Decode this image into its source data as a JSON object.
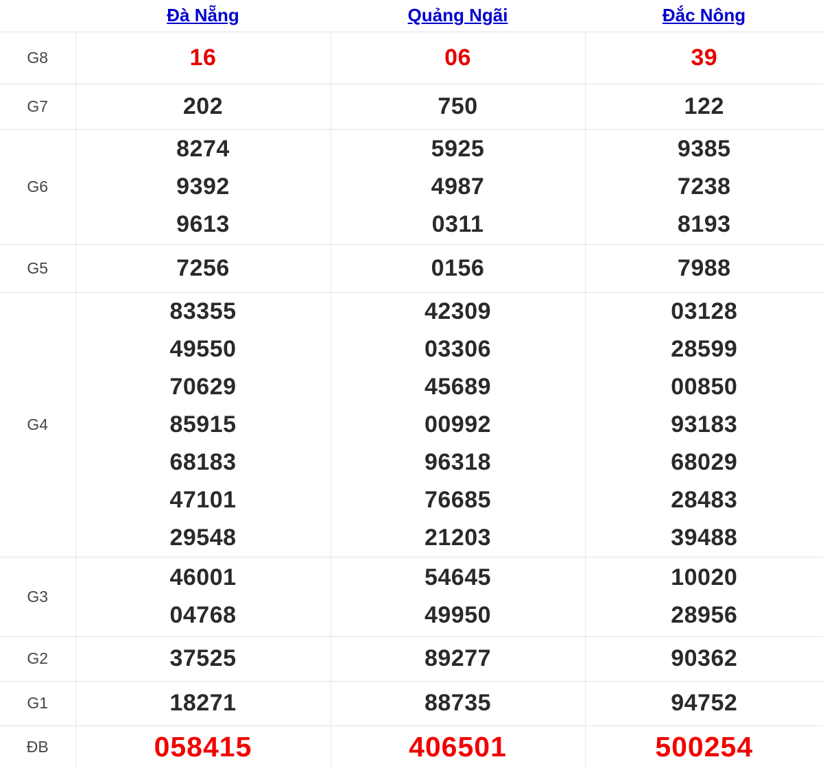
{
  "table": {
    "columns": [
      {
        "id": "da-nang",
        "label": "Đà Nẵng"
      },
      {
        "id": "quang-ngai",
        "label": "Quảng Ngãi"
      },
      {
        "id": "dac-nong",
        "label": "Đắc Nông"
      }
    ],
    "rows": [
      {
        "id": "g8",
        "label": "G8",
        "style": "red",
        "values": [
          [
            "16"
          ],
          [
            "06"
          ],
          [
            "39"
          ]
        ]
      },
      {
        "id": "g7",
        "label": "G7",
        "style": "normal",
        "values": [
          [
            "202"
          ],
          [
            "750"
          ],
          [
            "122"
          ]
        ]
      },
      {
        "id": "g6",
        "label": "G6",
        "style": "normal",
        "values": [
          [
            "8274",
            "9392",
            "9613"
          ],
          [
            "5925",
            "4987",
            "0311"
          ],
          [
            "9385",
            "7238",
            "8193"
          ]
        ]
      },
      {
        "id": "g5",
        "label": "G5",
        "style": "normal",
        "values": [
          [
            "7256"
          ],
          [
            "0156"
          ],
          [
            "7988"
          ]
        ]
      },
      {
        "id": "g4",
        "label": "G4",
        "style": "normal",
        "values": [
          [
            "83355",
            "49550",
            "70629",
            "85915",
            "68183",
            "47101",
            "29548"
          ],
          [
            "42309",
            "03306",
            "45689",
            "00992",
            "96318",
            "76685",
            "21203"
          ],
          [
            "03128",
            "28599",
            "00850",
            "93183",
            "68029",
            "28483",
            "39488"
          ]
        ]
      },
      {
        "id": "g3",
        "label": "G3",
        "style": "normal",
        "values": [
          [
            "46001",
            "04768"
          ],
          [
            "54645",
            "49950"
          ],
          [
            "10020",
            "28956"
          ]
        ]
      },
      {
        "id": "g2",
        "label": "G2",
        "style": "normal",
        "values": [
          [
            "37525"
          ],
          [
            "89277"
          ],
          [
            "90362"
          ]
        ]
      },
      {
        "id": "g1",
        "label": "G1",
        "style": "normal",
        "values": [
          [
            "18271"
          ],
          [
            "88735"
          ],
          [
            "94752"
          ]
        ]
      },
      {
        "id": "db",
        "label": "ĐB",
        "style": "red-large",
        "values": [
          [
            "058415"
          ],
          [
            "406501"
          ],
          [
            "500254"
          ]
        ]
      }
    ]
  },
  "colors": {
    "link_blue": "#0000cc",
    "prize_red": "#e60000",
    "special_red": "#f10000",
    "value_dark": "#2a2a2a",
    "label_gray": "#454545",
    "border_gray": "#e2e2e2"
  }
}
